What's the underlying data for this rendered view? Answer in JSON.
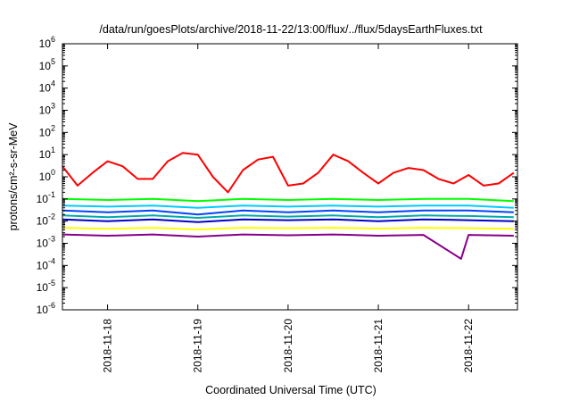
{
  "chart_data": {
    "type": "line",
    "title": "/data/run/goesPlots/archive/2018-11-22/13:00/flux/../flux/5daysEarthFluxes.txt",
    "xlabel": "Coordinated Universal Time (UTC)",
    "ylabel": "protons/cm²-s-sr-MeV",
    "yscale": "log",
    "ylim": [
      1e-06,
      1000000.0
    ],
    "xlim": [
      "2018-11-17 12:00",
      "2018-11-22 13:00"
    ],
    "x_ticks": [
      "2018-11-18",
      "2018-11-19",
      "2018-11-20",
      "2018-11-21",
      "2018-11-22"
    ],
    "y_ticks": [
      "10^-6",
      "10^-5",
      "10^-4",
      "10^-3",
      "10^-2",
      "10^-1",
      "10^0",
      "10^1",
      "10^2",
      "10^3",
      "10^4",
      "10^5",
      "10^6"
    ],
    "grid": false,
    "legend": "none",
    "series": [
      {
        "color": "#ff0000",
        "x": [
          "2018-11-17 12:00",
          "2018-11-17 16:00",
          "2018-11-17 20:00",
          "2018-11-18 00:00",
          "2018-11-18 04:00",
          "2018-11-18 08:00",
          "2018-11-18 12:00",
          "2018-11-18 16:00",
          "2018-11-18 20:00",
          "2018-11-19 00:00",
          "2018-11-19 04:00",
          "2018-11-19 08:00",
          "2018-11-19 12:00",
          "2018-11-19 16:00",
          "2018-11-19 20:00",
          "2018-11-20 00:00",
          "2018-11-20 04:00",
          "2018-11-20 08:00",
          "2018-11-20 12:00",
          "2018-11-20 16:00",
          "2018-11-20 20:00",
          "2018-11-21 00:00",
          "2018-11-21 04:00",
          "2018-11-21 08:00",
          "2018-11-21 12:00",
          "2018-11-21 16:00",
          "2018-11-21 20:00",
          "2018-11-22 00:00",
          "2018-11-22 04:00",
          "2018-11-22 08:00",
          "2018-11-22 12:00"
        ],
        "y": [
          3,
          0.4,
          1.5,
          5,
          3,
          0.8,
          0.8,
          5,
          12,
          10,
          1,
          0.2,
          2,
          6,
          8,
          0.4,
          0.5,
          1.5,
          10,
          5,
          1.5,
          0.5,
          1.5,
          2.5,
          2,
          0.8,
          0.5,
          1.2,
          0.4,
          0.5,
          1.5
        ]
      },
      {
        "color": "#00ff00",
        "x": [
          "2018-11-17 12:00",
          "2018-11-18 00:00",
          "2018-11-18 12:00",
          "2018-11-19 00:00",
          "2018-11-19 12:00",
          "2018-11-20 00:00",
          "2018-11-20 12:00",
          "2018-11-21 00:00",
          "2018-11-21 12:00",
          "2018-11-22 00:00",
          "2018-11-22 12:00"
        ],
        "y": [
          0.1,
          0.09,
          0.1,
          0.08,
          0.1,
          0.09,
          0.1,
          0.09,
          0.1,
          0.1,
          0.08
        ]
      },
      {
        "color": "#00ccff",
        "x": [
          "2018-11-17 12:00",
          "2018-11-18 00:00",
          "2018-11-18 12:00",
          "2018-11-19 00:00",
          "2018-11-19 12:00",
          "2018-11-20 00:00",
          "2018-11-20 12:00",
          "2018-11-21 00:00",
          "2018-11-21 12:00",
          "2018-11-22 00:00",
          "2018-11-22 12:00"
        ],
        "y": [
          0.05,
          0.045,
          0.05,
          0.04,
          0.05,
          0.045,
          0.05,
          0.045,
          0.05,
          0.05,
          0.04
        ]
      },
      {
        "color": "#0044ff",
        "x": [
          "2018-11-17 12:00",
          "2018-11-18 00:00",
          "2018-11-18 12:00",
          "2018-11-19 00:00",
          "2018-11-19 12:00",
          "2018-11-20 00:00",
          "2018-11-20 12:00",
          "2018-11-21 00:00",
          "2018-11-21 12:00",
          "2018-11-22 00:00",
          "2018-11-22 12:00"
        ],
        "y": [
          0.03,
          0.025,
          0.03,
          0.02,
          0.03,
          0.025,
          0.03,
          0.025,
          0.03,
          0.03,
          0.025
        ]
      },
      {
        "color": "#00aaaa",
        "x": [
          "2018-11-17 12:00",
          "2018-11-18 00:00",
          "2018-11-18 12:00",
          "2018-11-19 00:00",
          "2018-11-19 12:00",
          "2018-11-20 00:00",
          "2018-11-20 12:00",
          "2018-11-21 00:00",
          "2018-11-21 12:00",
          "2018-11-22 00:00",
          "2018-11-22 12:00"
        ],
        "y": [
          0.018,
          0.015,
          0.018,
          0.014,
          0.018,
          0.016,
          0.018,
          0.015,
          0.018,
          0.017,
          0.015
        ]
      },
      {
        "color": "#0000cc",
        "x": [
          "2018-11-17 12:00",
          "2018-11-18 00:00",
          "2018-11-18 12:00",
          "2018-11-19 00:00",
          "2018-11-19 12:00",
          "2018-11-20 00:00",
          "2018-11-20 12:00",
          "2018-11-21 00:00",
          "2018-11-21 12:00",
          "2018-11-22 00:00",
          "2018-11-22 12:00"
        ],
        "y": [
          0.012,
          0.01,
          0.012,
          0.009,
          0.012,
          0.011,
          0.012,
          0.01,
          0.012,
          0.011,
          0.01
        ]
      },
      {
        "color": "#ffff00",
        "x": [
          "2018-11-17 12:00",
          "2018-11-18 00:00",
          "2018-11-18 12:00",
          "2018-11-19 00:00",
          "2018-11-19 12:00",
          "2018-11-20 00:00",
          "2018-11-20 12:00",
          "2018-11-21 00:00",
          "2018-11-21 12:00",
          "2018-11-22 00:00",
          "2018-11-22 12:00"
        ],
        "y": [
          0.005,
          0.0045,
          0.005,
          0.0042,
          0.005,
          0.0048,
          0.005,
          0.0046,
          0.005,
          0.0048,
          0.0045
        ]
      },
      {
        "color": "#880088",
        "x": [
          "2018-11-17 12:00",
          "2018-11-18 00:00",
          "2018-11-18 12:00",
          "2018-11-19 00:00",
          "2018-11-19 12:00",
          "2018-11-20 00:00",
          "2018-11-20 12:00",
          "2018-11-21 00:00",
          "2018-11-21 12:00",
          "2018-11-21 22:00",
          "2018-11-22 00:00",
          "2018-11-22 12:00"
        ],
        "y": [
          0.0025,
          0.0022,
          0.0025,
          0.002,
          0.0025,
          0.0023,
          0.0025,
          0.0022,
          0.0024,
          0.0002,
          0.0024,
          0.0022
        ]
      }
    ]
  }
}
